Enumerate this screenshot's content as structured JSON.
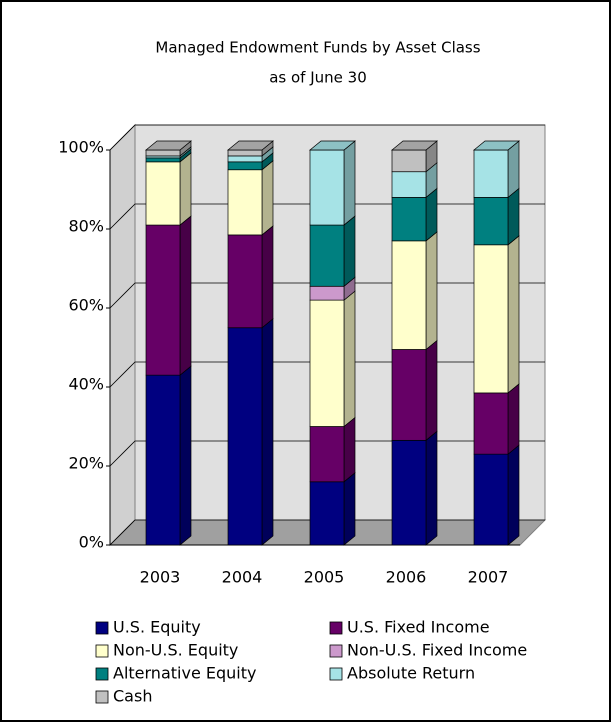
{
  "chart_data": {
    "type": "bar3d_stacked",
    "title": "Managed Endowment Funds by Asset Class",
    "subtitle": "as of June 30",
    "categories": [
      "2003",
      "2004",
      "2005",
      "2006",
      "2007"
    ],
    "series": [
      {
        "name": "U.S. Equity",
        "color": "#000080",
        "values": [
          43,
          55,
          16,
          26.5,
          23
        ]
      },
      {
        "name": "U.S. Fixed Income",
        "color": "#660066",
        "values": [
          38,
          23.5,
          14,
          23,
          15.5
        ]
      },
      {
        "name": "Non-U.S. Equity",
        "color": "#ffffcc",
        "values": [
          16,
          16.5,
          32,
          27.5,
          37.5
        ]
      },
      {
        "name": "Non-U.S. Fixed Income",
        "color": "#cc99cc",
        "values": [
          0,
          0,
          3.5,
          0,
          0
        ]
      },
      {
        "name": "Alternative Equity",
        "color": "#008080",
        "values": [
          1,
          2,
          15.5,
          11,
          12
        ]
      },
      {
        "name": "Absolute Return",
        "color": "#a6e3e6",
        "values": [
          0.5,
          1.5,
          19,
          6.5,
          12
        ]
      },
      {
        "name": "Cash",
        "color": "#c0c0c0",
        "values": [
          1.5,
          1.5,
          0,
          5.5,
          0
        ]
      }
    ],
    "ylim": [
      0,
      100
    ],
    "yticks": [
      {
        "value": 0,
        "label": "0%"
      },
      {
        "value": 20,
        "label": "20%"
      },
      {
        "value": 40,
        "label": "40%"
      },
      {
        "value": 60,
        "label": "60%"
      },
      {
        "value": 80,
        "label": "80%"
      },
      {
        "value": 100,
        "label": "100%"
      }
    ],
    "grid": true
  }
}
